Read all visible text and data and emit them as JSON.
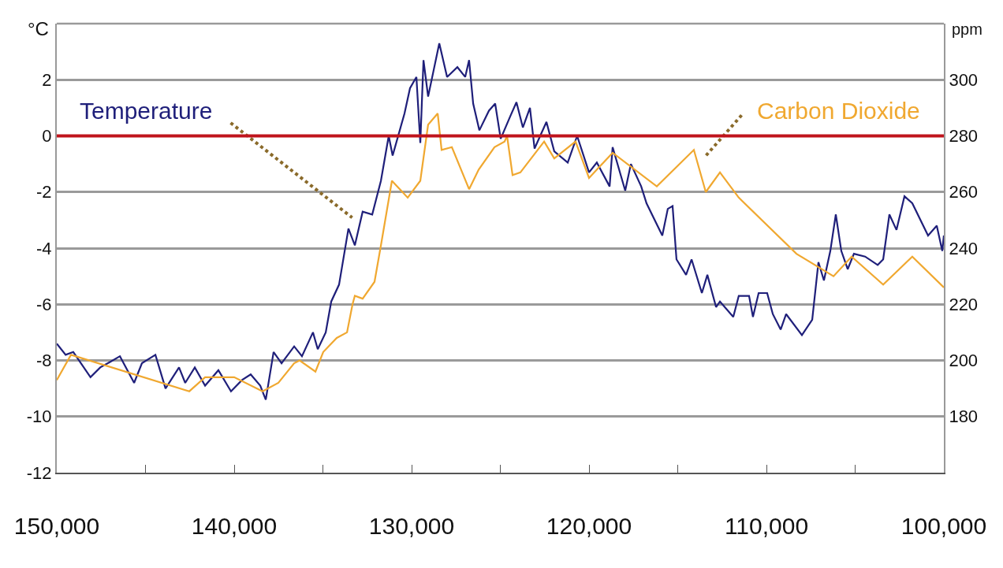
{
  "chart_data": {
    "type": "line",
    "ylabel": "°C",
    "y2label": "ppm",
    "xlim": [
      150000,
      100000
    ],
    "xticks": [
      {
        "value": 150000,
        "label": "150,000"
      },
      {
        "value": 145000,
        "label": null
      },
      {
        "value": 140000,
        "label": "140,000"
      },
      {
        "value": 135000,
        "label": null
      },
      {
        "value": 130000,
        "label": "130,000"
      },
      {
        "value": 125000,
        "label": null
      },
      {
        "value": 120000,
        "label": "120,000"
      },
      {
        "value": 115000,
        "label": null
      },
      {
        "value": 110000,
        "label": "110,000"
      },
      {
        "value": 105000,
        "label": null
      },
      {
        "value": 100000,
        "label": "100,000"
      }
    ],
    "ylim": [
      -12,
      4
    ],
    "yticks": [
      -12,
      -10,
      -8,
      -6,
      -4,
      -2,
      0,
      2
    ],
    "y2lim": [
      160,
      320
    ],
    "y2ticks": [
      180,
      200,
      220,
      240,
      260,
      280,
      300
    ],
    "grid": "y",
    "legend": false,
    "marker": "none",
    "line_style": "solid",
    "ref_lines": [
      {
        "axis": "y",
        "value": 0,
        "label": null,
        "color": "#c0141c"
      }
    ],
    "series": [
      {
        "name": "Temperature",
        "color": "#1f1f7a",
        "x": [
          150000,
          149500,
          149070,
          148100,
          147550,
          146980,
          146440,
          145640,
          145200,
          144440,
          143870,
          143110,
          142760,
          142220,
          141640,
          140890,
          140180,
          139560,
          139070,
          138530,
          138220,
          137780,
          137330,
          136620,
          136180,
          135560,
          135290,
          134840,
          134530,
          134090,
          133560,
          133200,
          132760,
          132220,
          131730,
          131290,
          131070,
          130400,
          130090,
          129730,
          129510,
          129330,
          129070,
          128440,
          128000,
          127420,
          126980,
          126760,
          126530,
          126180,
          125640,
          125290,
          124980,
          124440,
          124090,
          123730,
          123330,
          123070,
          122400,
          121960,
          121200,
          120670,
          120000,
          119560,
          118840,
          118670,
          117960,
          117640,
          117060,
          116760,
          115870,
          115560,
          115290,
          115070,
          114530,
          114220,
          113640,
          113330,
          112840,
          112620,
          111870,
          111560,
          110980,
          110760,
          110440,
          109960,
          109640,
          109200,
          108890,
          108000,
          107420,
          107070,
          106760,
          106400,
          106090,
          105780,
          105420,
          105070,
          104440,
          103730,
          103420,
          103070,
          102670,
          102220,
          101780,
          100890,
          100400,
          100090,
          100000
        ],
        "values": [
          -7.4,
          -7.8,
          -7.7,
          -8.6,
          -8.25,
          -8.05,
          -7.85,
          -8.8,
          -8.1,
          -7.8,
          -9.0,
          -8.25,
          -8.8,
          -8.25,
          -8.9,
          -8.35,
          -9.1,
          -8.7,
          -8.5,
          -8.9,
          -9.4,
          -7.7,
          -8.1,
          -7.5,
          -7.85,
          -7.0,
          -7.6,
          -7.0,
          -5.9,
          -5.3,
          -3.3,
          -3.9,
          -2.7,
          -2.8,
          -1.6,
          0.0,
          -0.7,
          0.8,
          1.7,
          2.1,
          -0.25,
          2.7,
          1.4,
          3.3,
          2.1,
          2.45,
          2.1,
          2.7,
          1.15,
          0.2,
          0.9,
          1.15,
          -0.1,
          0.7,
          1.2,
          0.3,
          1.0,
          -0.45,
          0.5,
          -0.55,
          -0.95,
          0.0,
          -1.3,
          -0.95,
          -1.8,
          -0.4,
          -1.95,
          -1.0,
          -1.8,
          -2.4,
          -3.55,
          -2.6,
          -2.5,
          -4.4,
          -4.95,
          -4.4,
          -5.6,
          -4.95,
          -6.1,
          -5.9,
          -6.45,
          -5.7,
          -5.7,
          -6.45,
          -5.6,
          -5.6,
          -6.35,
          -6.9,
          -6.35,
          -7.1,
          -6.55,
          -4.5,
          -5.15,
          -4.1,
          -2.8,
          -4.1,
          -4.75,
          -4.2,
          -4.3,
          -4.6,
          -4.4,
          -2.8,
          -3.35,
          -2.15,
          -2.4,
          -3.55,
          -3.2,
          -4.1,
          -3.55
        ]
      },
      {
        "name": "Carbon Dioxide",
        "color": "#f0a830",
        "axis": "y2",
        "x": [
          150000,
          149200,
          142530,
          141640,
          140000,
          138400,
          137510,
          136620,
          136310,
          135420,
          134980,
          134220,
          133640,
          133330,
          133200,
          132760,
          132090,
          131730,
          131110,
          130220,
          129510,
          129070,
          128530,
          128310,
          127730,
          126760,
          126220,
          125330,
          124760,
          124620,
          124310,
          123870,
          122530,
          121960,
          120760,
          120000,
          118670,
          116180,
          114090,
          113420,
          112620,
          111560,
          108310,
          106220,
          105200,
          103420,
          101780,
          100000
        ],
        "values": [
          193,
          202,
          189,
          194,
          194,
          189,
          192,
          199,
          200,
          196,
          203,
          208,
          210,
          220,
          223,
          222,
          228,
          241,
          264,
          258,
          264,
          284,
          288,
          275,
          276,
          261,
          268,
          276,
          278,
          280,
          266,
          267,
          278,
          272,
          278,
          265,
          274,
          262,
          275,
          260,
          267,
          258,
          238,
          230,
          237,
          227,
          237,
          226
        ]
      }
    ]
  }
}
